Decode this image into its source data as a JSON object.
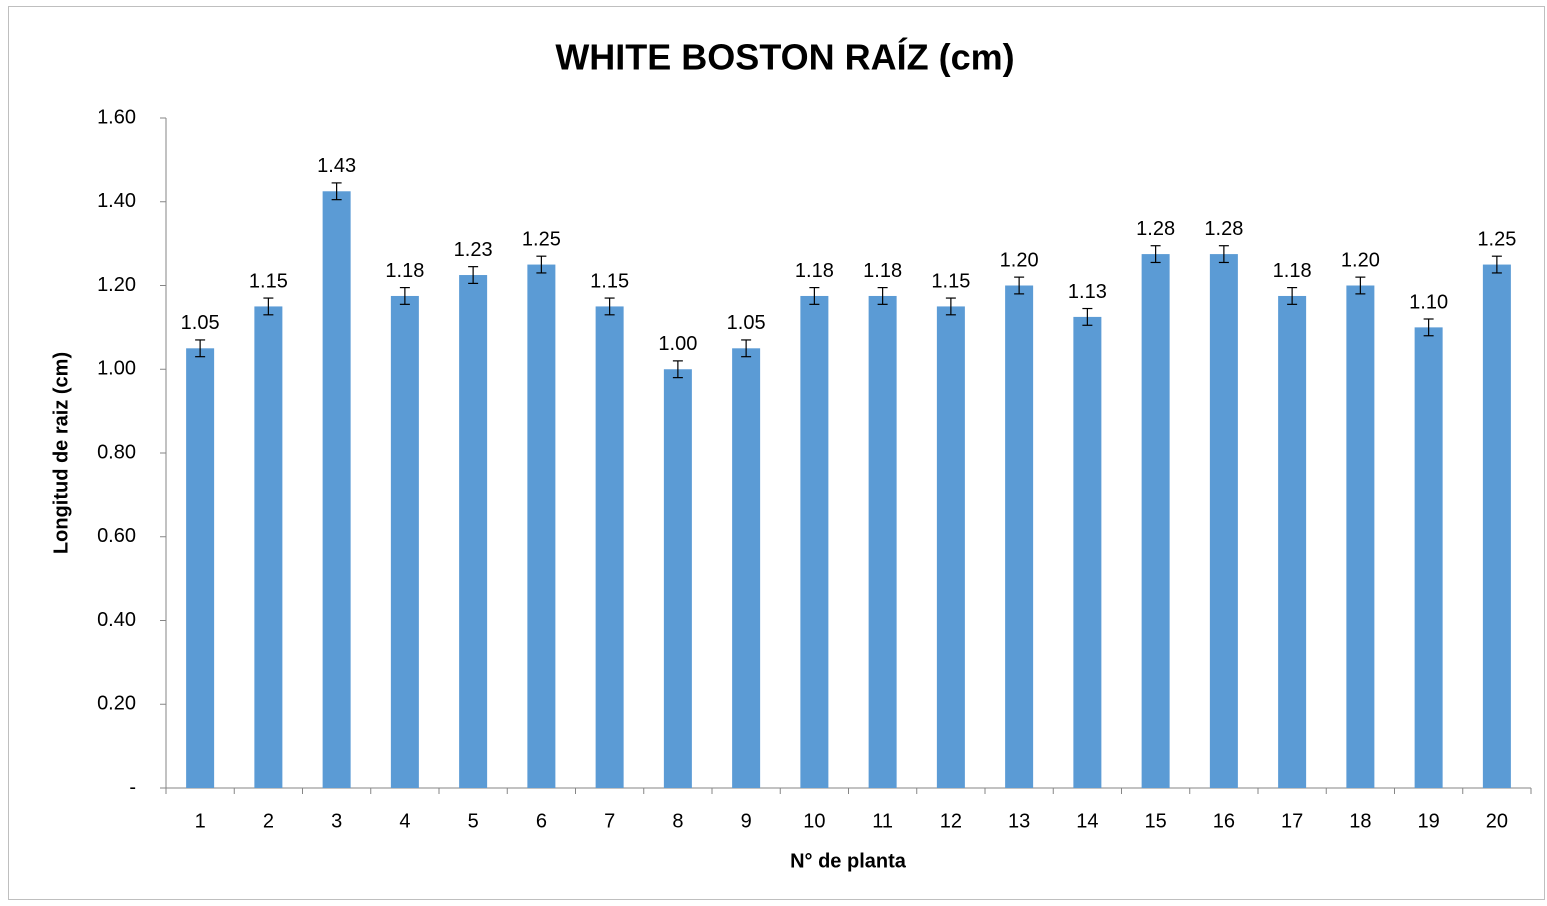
{
  "chart_data": {
    "type": "bar",
    "title": "WHITE BOSTON RAÍZ (cm)",
    "x_label": "N° de planta",
    "y_label": "Longitud de raiz (cm)",
    "categories": [
      "1",
      "2",
      "3",
      "4",
      "5",
      "6",
      "7",
      "8",
      "9",
      "10",
      "11",
      "12",
      "13",
      "14",
      "15",
      "16",
      "17",
      "18",
      "19",
      "20"
    ],
    "values": [
      1.05,
      1.15,
      1.425,
      1.175,
      1.225,
      1.25,
      1.15,
      1.0,
      1.05,
      1.175,
      1.175,
      1.15,
      1.2,
      1.125,
      1.275,
      1.275,
      1.175,
      1.2,
      1.1,
      1.25
    ],
    "value_labels": [
      "1.05",
      "1.15",
      "1.43",
      "1.18",
      "1.23",
      "1.25",
      "1.15",
      "1.00",
      "1.05",
      "1.18",
      "1.18",
      "1.15",
      "1.20",
      "1.13",
      "1.28",
      "1.28",
      "1.18",
      "1.20",
      "1.10",
      "1.25"
    ],
    "errors": [
      0.02,
      0.02,
      0.02,
      0.02,
      0.02,
      0.02,
      0.02,
      0.02,
      0.02,
      0.02,
      0.02,
      0.02,
      0.02,
      0.02,
      0.02,
      0.02,
      0.02,
      0.02,
      0.02,
      0.02
    ],
    "color": "#5b9bd5",
    "ylim": [
      0,
      1.6
    ],
    "yticks": [
      {
        "value": 0,
        "label": "-"
      },
      {
        "value": 0.2,
        "label": "0.20"
      },
      {
        "value": 0.4,
        "label": "0.40"
      },
      {
        "value": 0.6,
        "label": "0.60"
      },
      {
        "value": 0.8,
        "label": "0.80"
      },
      {
        "value": 1.0,
        "label": "1.00"
      },
      {
        "value": 1.2,
        "label": "1.20"
      },
      {
        "value": 1.4,
        "label": "1.40"
      },
      {
        "value": 1.6,
        "label": "1.60"
      }
    ],
    "grid": false
  }
}
